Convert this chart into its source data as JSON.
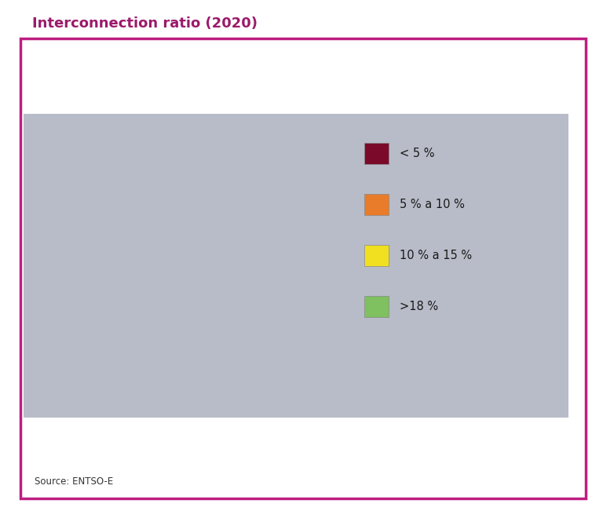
{
  "title": "Interconnection ratio (2020)",
  "title_color": "#9B1A6B",
  "source_text": "Source: ENTSO-E",
  "background_color": "#ffffff",
  "border_color": "#BE1E82",
  "map_bg_color": "#B8BCC8",
  "ocean_color": "#ffffff",
  "border_linewidth": 2.5,
  "legend": [
    {
      "label": "< 5 %",
      "color": "#7B0A2A"
    },
    {
      "label": "5 % a 10 %",
      "color": "#E87C2A"
    },
    {
      "label": "10 % a 15 %",
      "color": "#F0E020"
    },
    {
      "label": ">18 %",
      "color": "#7FC060"
    }
  ],
  "country_colors": {
    "ISL": "#7B0A2A",
    "ESP": "#E87C2A",
    "PRT": "#E87C2A",
    "GBR": "#F0E020",
    "IRL": "#7FC060",
    "FRA": "#F0E020",
    "BEL": "#F0E020",
    "NLD": "#F0E020",
    "DEU": "#F0E020",
    "LUX": "#7FC060",
    "CHE": "#7FC060",
    "AUT": "#7FC060",
    "ITA": "#F0E020",
    "POL": "#F0E020",
    "CZE": "#7FC060",
    "SVK": "#7FC060",
    "HUN": "#7FC060",
    "SVN": "#7FC060",
    "HRV": "#7FC060",
    "BIH": "#7FC060",
    "SRB": "#7FC060",
    "MNE": "#7FC060",
    "ALB": "#7FC060",
    "MKD": "#7FC060",
    "GRC": "#F0E020",
    "BGR": "#7FC060",
    "ROU": "#7FC060",
    "LTU": "#7FC060",
    "LVA": "#7FC060",
    "EST": "#7FC060",
    "FIN": "#7FC060",
    "SWE": "#7FC060",
    "NOR": "#7FC060",
    "DNK": "#F0E020",
    "CYP": "#7B0A2A"
  },
  "xlim": [
    -25,
    45
  ],
  "ylim": [
    33,
    72
  ],
  "figsize": [
    7.54,
    6.51
  ],
  "dpi": 100
}
